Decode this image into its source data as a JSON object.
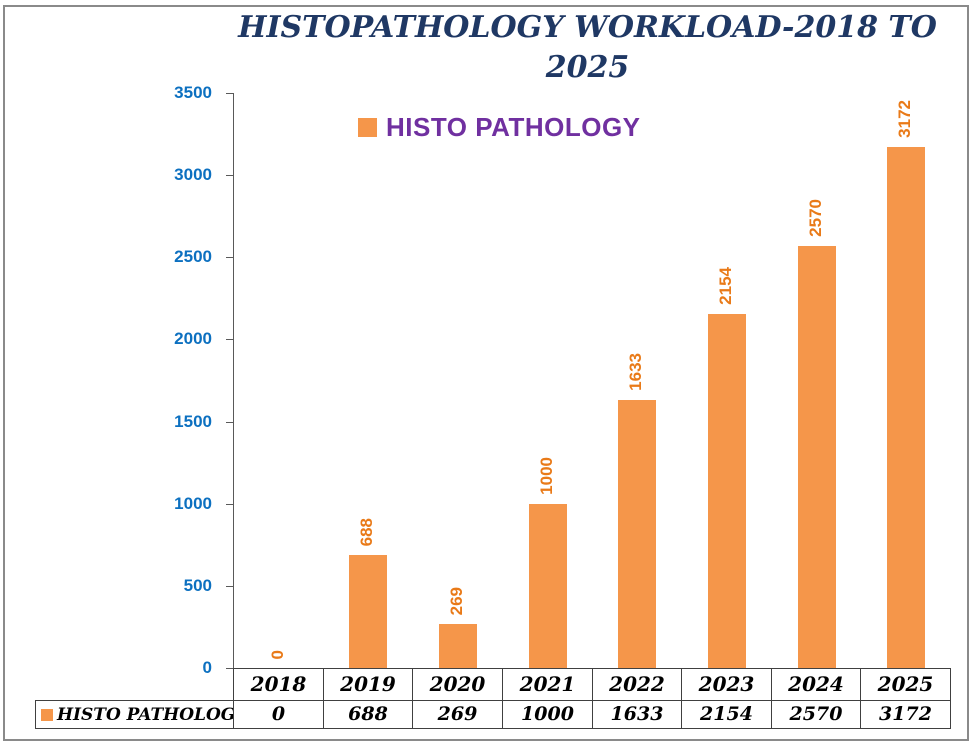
{
  "title": {
    "line1": "HISTOPATHOLOGY WORKLOAD-2018 TO",
    "line2": "2025",
    "color": "#1F3864"
  },
  "legend": {
    "label": "HISTO PATHOLOGY",
    "marker_color": "#F5964A",
    "text_color": "#7030A0",
    "position": "top-center"
  },
  "chart_data": {
    "type": "bar",
    "title": "HISTOPATHOLOGY WORKLOAD-2018 TO 2025",
    "categories": [
      "2018",
      "2019",
      "2020",
      "2021",
      "2022",
      "2023",
      "2024",
      "2025"
    ],
    "series": [
      {
        "name": "HISTO PATHOLOGY",
        "values": [
          0,
          688,
          269,
          1000,
          1633,
          2154,
          2570,
          3172
        ]
      }
    ],
    "xlabel": "",
    "ylabel": "",
    "ylim": [
      0,
      3500
    ],
    "yticks": [
      0,
      500,
      1000,
      1500,
      2000,
      2500,
      3000,
      3500
    ],
    "grid": false,
    "data_labels_rotated": true,
    "data_table_shown": true,
    "colors": {
      "bar": "#F5964A",
      "data_label": "#E97A18",
      "axis_tick_label": "#0C70C0",
      "axis_line": "#595959",
      "table_border": "#404040",
      "table_text": "#000000"
    }
  }
}
